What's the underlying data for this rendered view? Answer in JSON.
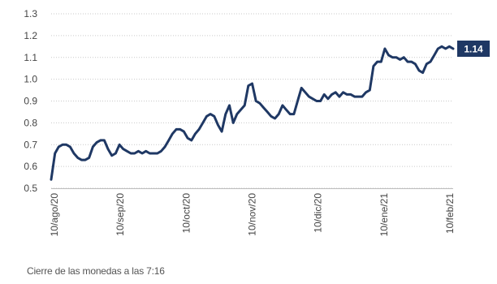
{
  "chart_data": {
    "type": "line",
    "title": "",
    "xlabel": "",
    "ylabel": "",
    "ylim": [
      0.5,
      1.3
    ],
    "y_ticks": [
      "0.5",
      "0.6",
      "0.7",
      "0.8",
      "0.9",
      "1.0",
      "1.1",
      "1.2",
      "1.3"
    ],
    "y_tick_values": [
      0.5,
      0.6,
      0.7,
      0.8,
      0.9,
      1.0,
      1.1,
      1.2,
      1.3
    ],
    "x_ticks": [
      "10/ago/20",
      "10/sep/20",
      "10/oct/20",
      "10/nov/20",
      "10/dic/20",
      "10/ene/21",
      "10/feb/21"
    ],
    "grid": "horizontal dotted",
    "line_color": "#1f3864",
    "last_value_label": "1.14",
    "series": [
      {
        "values": [
          0.54,
          0.66,
          0.69,
          0.7,
          0.7,
          0.69,
          0.66,
          0.64,
          0.63,
          0.63,
          0.64,
          0.69,
          0.71,
          0.72,
          0.72,
          0.68,
          0.65,
          0.66,
          0.7,
          0.68,
          0.67,
          0.66,
          0.66,
          0.67,
          0.66,
          0.67,
          0.66,
          0.66,
          0.66,
          0.67,
          0.69,
          0.72,
          0.75,
          0.77,
          0.77,
          0.76,
          0.73,
          0.72,
          0.75,
          0.77,
          0.8,
          0.83,
          0.84,
          0.83,
          0.79,
          0.76,
          0.84,
          0.88,
          0.8,
          0.84,
          0.86,
          0.88,
          0.97,
          0.98,
          0.9,
          0.89,
          0.87,
          0.85,
          0.83,
          0.82,
          0.84,
          0.88,
          0.86,
          0.84,
          0.84,
          0.9,
          0.96,
          0.94,
          0.92,
          0.91,
          0.9,
          0.9,
          0.93,
          0.91,
          0.93,
          0.94,
          0.92,
          0.94,
          0.93,
          0.93,
          0.92,
          0.92,
          0.92,
          0.94,
          0.95,
          1.06,
          1.08,
          1.08,
          1.14,
          1.11,
          1.1,
          1.1,
          1.09,
          1.1,
          1.08,
          1.08,
          1.07,
          1.04,
          1.03,
          1.07,
          1.08,
          1.11,
          1.14,
          1.15,
          1.14,
          1.15,
          1.14
        ]
      }
    ]
  },
  "footnote": "Cierre de las monedas a las 7:16"
}
